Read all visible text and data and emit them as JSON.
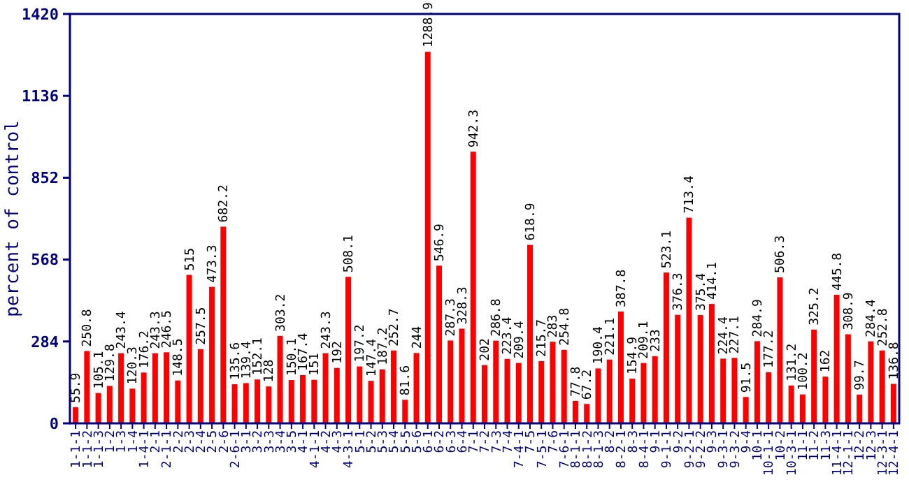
{
  "chart_data": {
    "type": "bar",
    "ylabel": "percent of control",
    "categories": [
      "1-1-1",
      "1-1-2",
      "1-1-3",
      "1-2",
      "1-3",
      "1-4",
      "1-4-1",
      "2-1",
      "2-1-1",
      "2-2",
      "2-3",
      "2-4",
      "2-5",
      "2-6",
      "2-6-1",
      "3-1",
      "3-2",
      "3-3",
      "3-4",
      "3-5",
      "4-1",
      "4-1-1",
      "4-2",
      "4-3",
      "4-3-1",
      "5-1",
      "5-2",
      "5-3",
      "5-4",
      "5-5",
      "5-6",
      "6-1",
      "6-2",
      "6-3",
      "6-4",
      "7-1",
      "7-2",
      "7-3",
      "7-4",
      "7-4-1",
      "7-5",
      "7-5-1",
      "7-6",
      "7-6-1",
      "8-1-1",
      "8-1-2",
      "8-1-3",
      "8-2",
      "8-2-1",
      "8-3",
      "8-4-1",
      "9-1",
      "9-1-1",
      "9-2",
      "9-2-1",
      "9-2-2",
      "9-3",
      "9-3-1",
      "9-3-2",
      "9-4",
      "10-1",
      "10-1-1",
      "10-2",
      "10-3-1",
      "11-1",
      "11-2",
      "11-3",
      "11-4-1",
      "12-1-1",
      "12-2",
      "12-3",
      "12-3-1",
      "12-4-1"
    ],
    "values": [
      55.9,
      250.8,
      105.1,
      129.8,
      243.4,
      120.3,
      176.2,
      243.3,
      246.5,
      148.5,
      515,
      257.5,
      473.3,
      682.2,
      135.6,
      139.4,
      152.1,
      128,
      303.2,
      150.1,
      167.4,
      151,
      243.3,
      192,
      508.1,
      197.2,
      147.4,
      187.2,
      252.7,
      81.6,
      244,
      1288.9,
      546.9,
      287.3,
      328.3,
      942.3,
      202,
      286.8,
      223.4,
      209.4,
      618.9,
      215.7,
      283,
      254.8,
      77.8,
      67.2,
      190.4,
      221.1,
      387.8,
      154.9,
      209.1,
      233,
      523.1,
      376.3,
      713.4,
      375.4,
      414.1,
      224.4,
      227.1,
      91.5,
      284.9,
      177.2,
      506.3,
      131.2,
      100.2,
      325.2,
      162,
      445.8,
      308.9,
      99.7,
      284.4,
      252.8,
      136.8
    ],
    "color": "#ff0000",
    "ylim": [
      0,
      1420
    ],
    "yticks": [
      0,
      284,
      568,
      852,
      1136,
      1420
    ],
    "data_labels": true
  }
}
